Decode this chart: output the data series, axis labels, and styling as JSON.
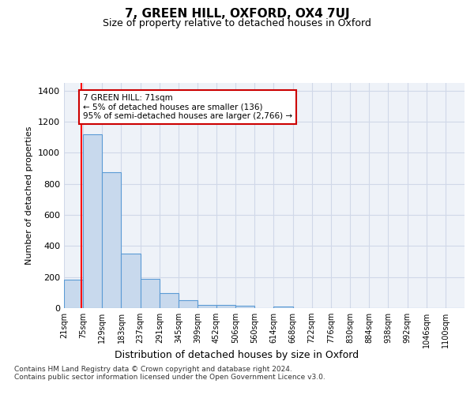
{
  "title": "7, GREEN HILL, OXFORD, OX4 7UJ",
  "subtitle": "Size of property relative to detached houses in Oxford",
  "xlabel": "Distribution of detached houses by size in Oxford",
  "ylabel": "Number of detached properties",
  "footnote1": "Contains HM Land Registry data © Crown copyright and database right 2024.",
  "footnote2": "Contains public sector information licensed under the Open Government Licence v3.0.",
  "bar_labels": [
    "21sqm",
    "75sqm",
    "129sqm",
    "183sqm",
    "237sqm",
    "291sqm",
    "345sqm",
    "399sqm",
    "452sqm",
    "506sqm",
    "560sqm",
    "614sqm",
    "668sqm",
    "722sqm",
    "776sqm",
    "830sqm",
    "884sqm",
    "938sqm",
    "992sqm",
    "1046sqm",
    "1100sqm"
  ],
  "bar_values": [
    185,
    1120,
    875,
    350,
    190,
    95,
    50,
    22,
    20,
    15,
    0,
    12,
    0,
    0,
    0,
    0,
    0,
    0,
    0,
    0,
    0
  ],
  "bar_color": "#c8d9ed",
  "bar_edge_color": "#5b9bd5",
  "grid_color": "#d0d8e8",
  "background_color": "#eef2f8",
  "annotation_line1": "7 GREEN HILL: 71sqm",
  "annotation_line2": "← 5% of detached houses are smaller (136)",
  "annotation_line3": "95% of semi-detached houses are larger (2,766) →",
  "annotation_box_color": "#ffffff",
  "annotation_box_edge_color": "#cc0000",
  "property_line_x": 71,
  "ylim": [
    0,
    1450
  ],
  "yticks": [
    0,
    200,
    400,
    600,
    800,
    1000,
    1200,
    1400
  ],
  "bin_width": 54
}
